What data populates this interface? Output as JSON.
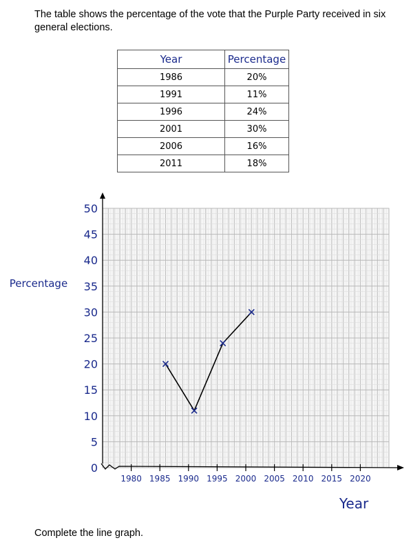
{
  "question": {
    "intro": "The table shows the percentage of the vote that the Purple Party received in six general elections.",
    "instruction": "Complete the line graph."
  },
  "table": {
    "headers": [
      "Year",
      "Percentage"
    ],
    "rows": [
      [
        "1986",
        "20%"
      ],
      [
        "1991",
        "11%"
      ],
      [
        "1996",
        "24%"
      ],
      [
        "2001",
        "30%"
      ],
      [
        "2006",
        "16%"
      ],
      [
        "2011",
        "18%"
      ]
    ]
  },
  "chart_data": {
    "type": "line",
    "xlabel": "Year",
    "ylabel": "Percentage",
    "xlim": [
      1975,
      2025
    ],
    "ylim": [
      0,
      50
    ],
    "x_ticks": [
      1980,
      1985,
      1990,
      1995,
      2000,
      2005,
      2010,
      2015,
      2020
    ],
    "y_ticks": [
      0,
      5,
      10,
      15,
      20,
      25,
      30,
      35,
      40,
      45,
      50
    ],
    "grid": true,
    "y_axis_break": true,
    "series": [
      {
        "x": [
          1986,
          1991,
          1996,
          2001
        ],
        "y": [
          20,
          11,
          24,
          30
        ],
        "color": "#1a2a8c"
      }
    ]
  }
}
